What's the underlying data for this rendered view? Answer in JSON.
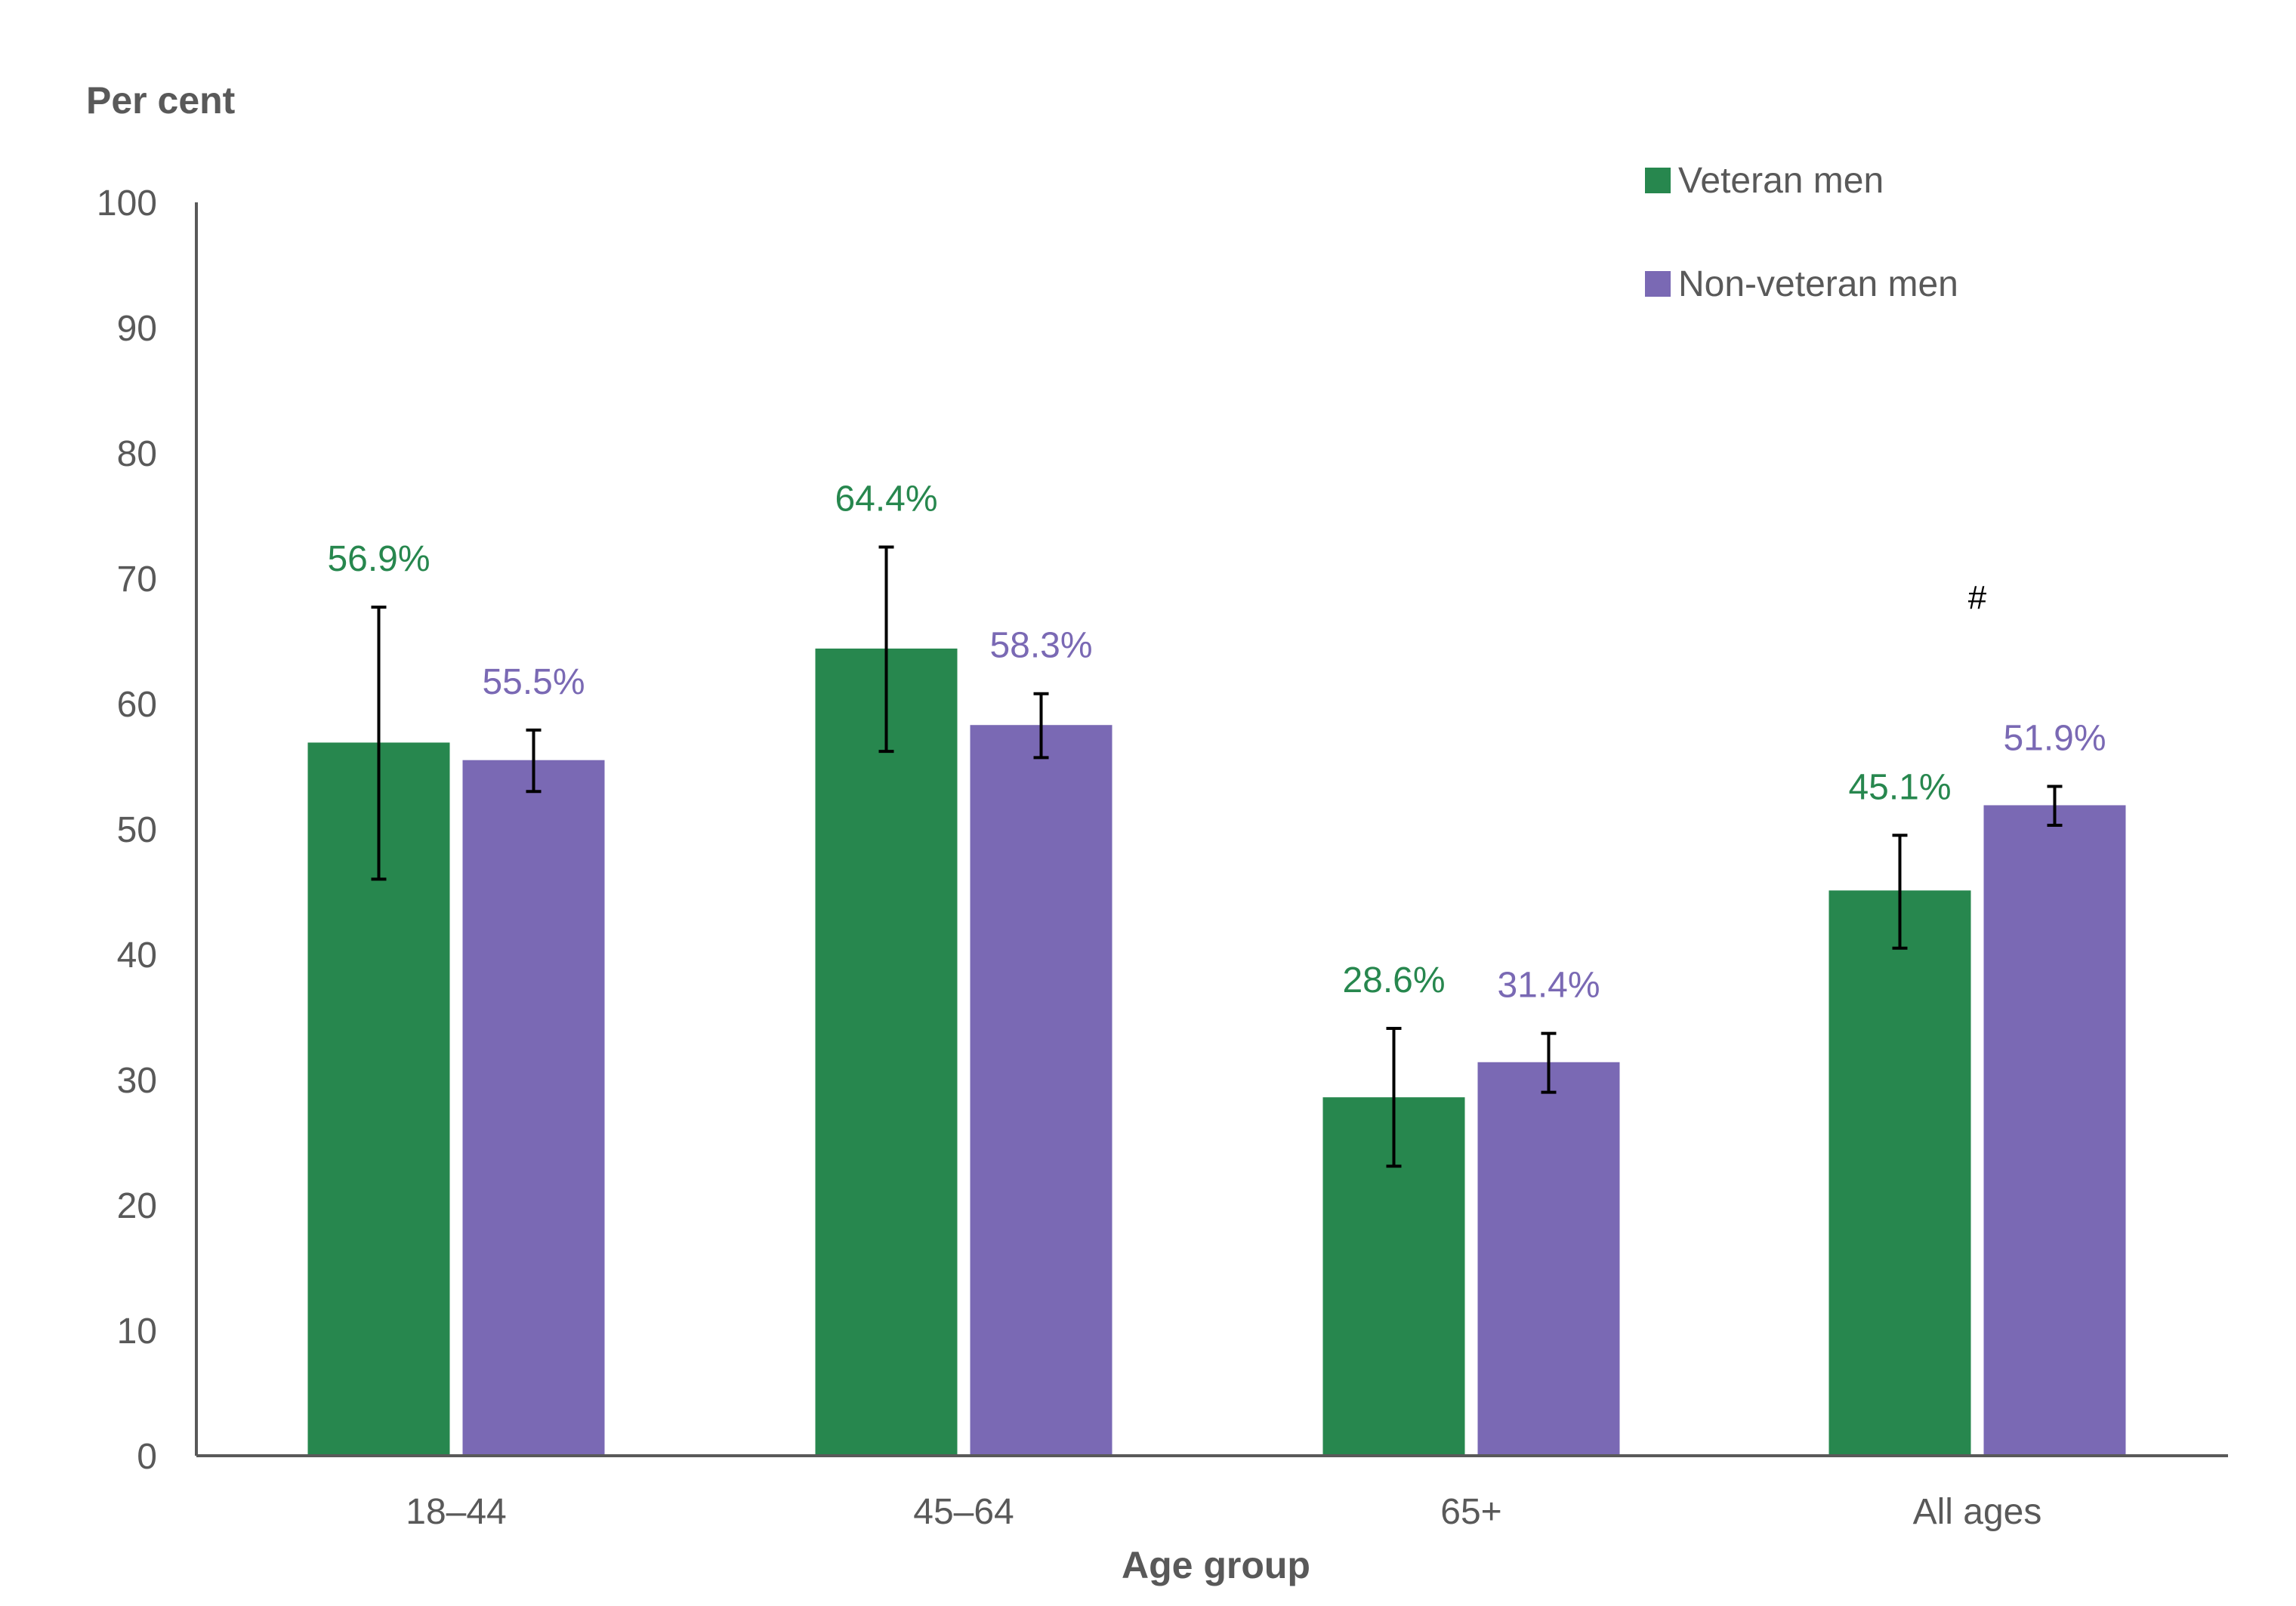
{
  "chart_data": {
    "type": "bar",
    "ylabel": "Per cent",
    "xlabel": "Age group",
    "ylim": [
      0,
      100
    ],
    "yticks": [
      0,
      10,
      20,
      30,
      40,
      50,
      60,
      70,
      80,
      90,
      100
    ],
    "categories": [
      "18–44",
      "45–64",
      "65+",
      "All ages"
    ],
    "legend_position": "top-right",
    "grid": false,
    "series": [
      {
        "name": "Veteran men",
        "color": "#27874E",
        "values": [
          56.9,
          64.4,
          28.6,
          45.1
        ],
        "labels": [
          "56.9%",
          "64.4%",
          "28.6%",
          "45.1%"
        ],
        "error_low": [
          46.0,
          56.2,
          23.1,
          40.5
        ],
        "error_high": [
          67.7,
          72.5,
          34.1,
          49.5
        ]
      },
      {
        "name": "Non-veteran men",
        "color": "#7A69B4",
        "values": [
          55.5,
          58.3,
          31.4,
          51.9
        ],
        "labels": [
          "55.5%",
          "58.3%",
          "31.4%",
          "51.9%"
        ],
        "error_low": [
          53.0,
          55.7,
          29.0,
          50.3
        ],
        "error_high": [
          57.9,
          60.8,
          33.7,
          53.4
        ]
      }
    ],
    "annotations": [
      {
        "text": "#",
        "category": "All ages",
        "value": 68.5
      }
    ]
  }
}
